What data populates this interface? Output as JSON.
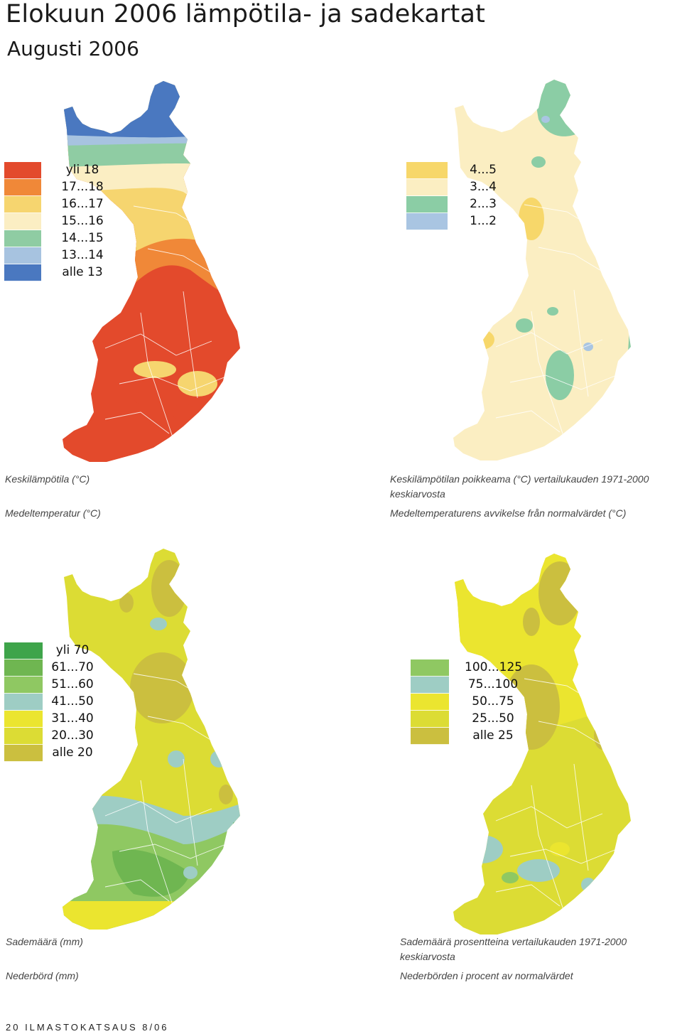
{
  "header": {
    "title": "Elokuun  2006 lämpötila- ja sadekartat",
    "subtitle": "Augusti 2006"
  },
  "maps": [
    {
      "name": "mean-temperature",
      "legend": [
        {
          "label": "yli 18",
          "color": "#e34a2c"
        },
        {
          "label": "17...18",
          "color": "#f08838"
        },
        {
          "label": "16...17",
          "color": "#f6d56f"
        },
        {
          "label": "15...16",
          "color": "#fbeec3"
        },
        {
          "label": "14...15",
          "color": "#8fcca3"
        },
        {
          "label": "13...14",
          "color": "#a7c3e0"
        },
        {
          "label": "alle 13",
          "color": "#4a78c0"
        }
      ],
      "caption_fi": "Keskilämpötila (°C)",
      "caption_sv": "Medeltemperatur (°C)"
    },
    {
      "name": "temperature-anomaly",
      "legend": [
        {
          "label": "4...5",
          "color": "#f7d76a"
        },
        {
          "label": "3...4",
          "color": "#fbeec2"
        },
        {
          "label": "2...3",
          "color": "#8bcda5"
        },
        {
          "label": "1...2",
          "color": "#a9c5e2"
        }
      ],
      "caption_fi": "Keskilämpötilan poikkeama (°C) vertailukauden 1971-2000 keskiarvosta",
      "caption_sv": "Medeltemperaturens avvikelse från normalvärdet (°C)"
    },
    {
      "name": "precipitation",
      "legend": [
        {
          "label": "yli 70",
          "color": "#3ea44a"
        },
        {
          "label": "61...70",
          "color": "#6fb651"
        },
        {
          "label": "51...60",
          "color": "#8fc862"
        },
        {
          "label": "41...50",
          "color": "#9ecdc4"
        },
        {
          "label": "31...40",
          "color": "#ebe52f"
        },
        {
          "label": "20...30",
          "color": "#dcdc34"
        },
        {
          "label": "alle 20",
          "color": "#cbbf3f"
        }
      ],
      "caption_fi": "Sademäärä (mm)",
      "caption_sv": "Nederbörd (mm)"
    },
    {
      "name": "precipitation-percent",
      "legend": [
        {
          "label": "100...125",
          "color": "#8fc862"
        },
        {
          "label": "75...100",
          "color": "#9ecdc4"
        },
        {
          "label": "50...75",
          "color": "#ebe52f"
        },
        {
          "label": "25...50",
          "color": "#dcdc34"
        },
        {
          "label": "alle 25",
          "color": "#cbbf3f"
        }
      ],
      "caption_fi": "Sademäärä prosentteina vertailukauden 1971-2000 keskiarvosta",
      "caption_sv": "Nederbörden i procent av normalvärdet"
    }
  ],
  "footer": {
    "text": "20  ILMASTOKATSAUS 8/06"
  }
}
